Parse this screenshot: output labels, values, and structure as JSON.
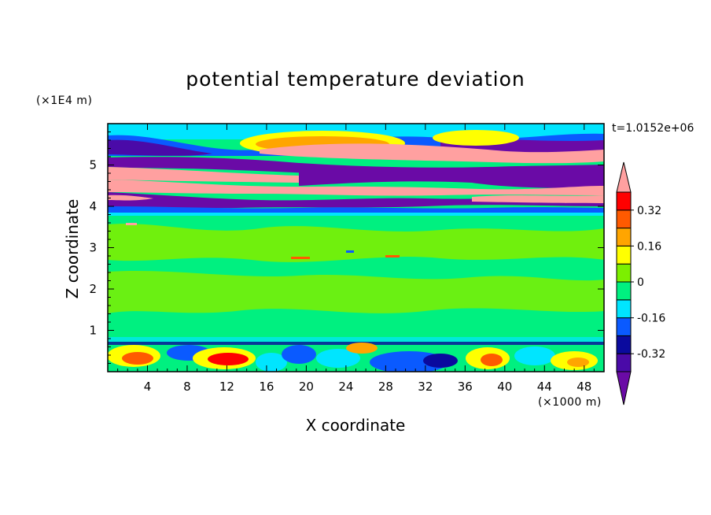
{
  "chart_data": {
    "type": "heatmap",
    "title": "potential temperature deviation",
    "xlabel": "X coordinate",
    "ylabel": "Z coordinate",
    "x_unit": "(×1000 m)",
    "y_unit": "(×1E4 m)",
    "time_label": "t=1.0152e+06",
    "xlim": [
      0,
      50
    ],
    "ylim": [
      0,
      6
    ],
    "x_ticks": [
      "4",
      "8",
      "12",
      "16",
      "20",
      "24",
      "28",
      "32",
      "36",
      "40",
      "44",
      "48"
    ],
    "y_ticks": [
      "1",
      "2",
      "3",
      "4",
      "5"
    ],
    "colorbar": {
      "levels": [
        -0.4,
        -0.32,
        -0.24,
        -0.16,
        -0.08,
        0,
        0.08,
        0.16,
        0.24,
        0.32,
        0.4
      ],
      "labels": [
        "0.32",
        "0.16",
        "0",
        "-0.16",
        "-0.32"
      ],
      "label_values": [
        0.32,
        0.16,
        0,
        -0.16,
        -0.32
      ],
      "colors": [
        "#6a0aa6",
        "#4a0aa8",
        "#0a0a9e",
        "#0a5aff",
        "#00e5ff",
        "#00f080",
        "#7cf000",
        "#ffff00",
        "#ffa500",
        "#ff5a00",
        "#ff0000",
        "#ffa0a0"
      ]
    },
    "bands": [
      {
        "z_range": [
          0,
          0.75
        ],
        "pattern": "turbulent mixed"
      },
      {
        "z_range": [
          0.75,
          3.8
        ],
        "pattern": "near zero"
      },
      {
        "z_range": [
          3.8,
          6.0
        ],
        "pattern": "layered positive and negative"
      }
    ]
  }
}
